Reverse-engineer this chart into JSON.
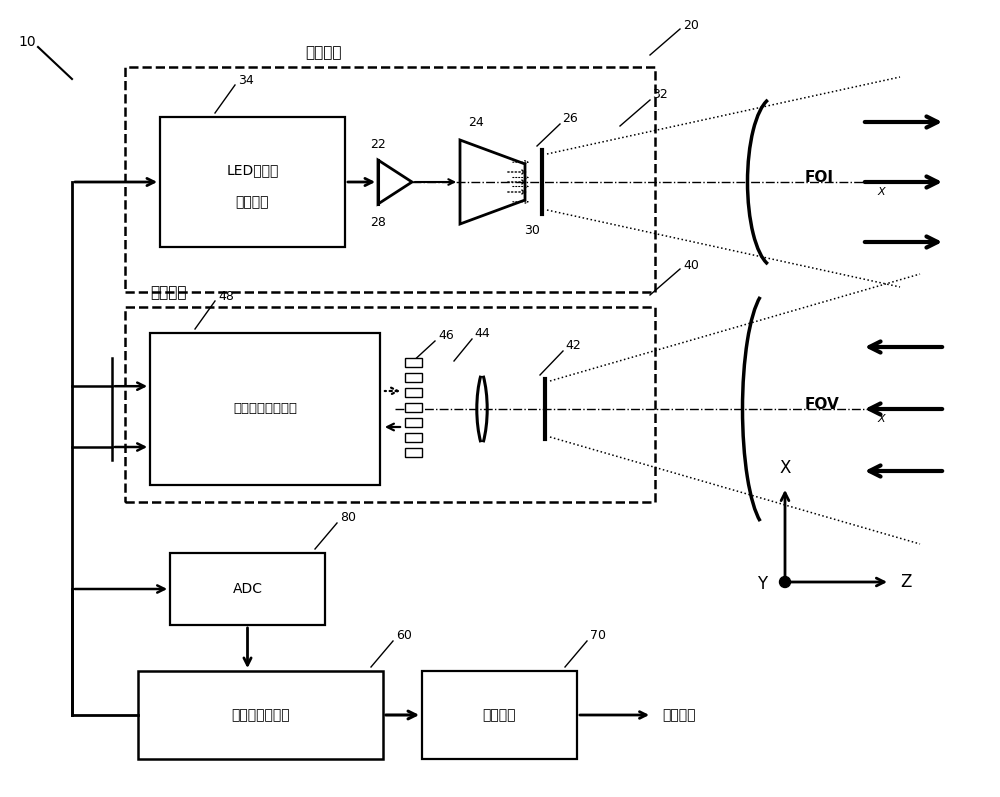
{
  "bg_color": "#ffffff",
  "fig_width": 10.0,
  "fig_height": 7.97,
  "text_transmitter": "光发射器",
  "text_receiver": "光接收器",
  "text_led_line1": "LED驱动器",
  "text_led_line2": "电子设备",
  "text_analog": "模拟前端电子设备",
  "text_adc": "ADC",
  "text_control": "控制和处理单元",
  "text_data_interface": "数据接口",
  "text_output": "输出数据",
  "text_FOIx": "FOI",
  "text_FOVx": "FOV",
  "text_X": "X",
  "text_Y": "Y",
  "text_Z": "Z",
  "label_10": "10",
  "label_20": "20",
  "label_22": "22",
  "label_24": "24",
  "label_26": "26",
  "label_28": "28",
  "label_30": "30",
  "label_32": "32",
  "label_34": "34",
  "label_40": "40",
  "label_42": "42",
  "label_44": "44",
  "label_46": "46",
  "label_48": "48",
  "label_60": "60",
  "label_70": "70",
  "label_80": "80"
}
